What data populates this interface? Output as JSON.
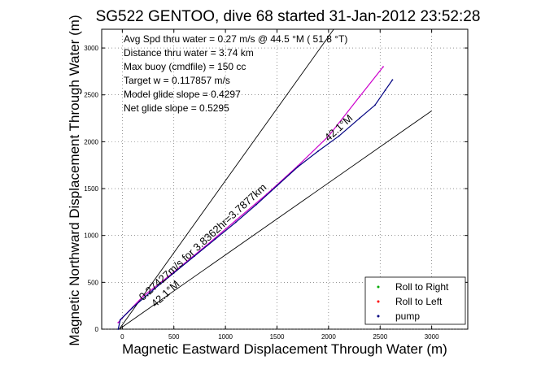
{
  "chart_data": {
    "type": "line",
    "title": "SG522 GENTOO, dive 68 started 31-Jan-2012 23:52:28",
    "xlabel": "Magnetic Eastward Displacement Through Water (m)",
    "ylabel": "Magnetic Northward Displacement Through Water (m)",
    "xlim": [
      -200,
      3350
    ],
    "ylim": [
      0,
      3200
    ],
    "xticks": [
      0,
      500,
      1000,
      1500,
      2000,
      2500,
      3000
    ],
    "yticks": [
      0,
      500,
      1000,
      1500,
      2000,
      2500,
      3000
    ],
    "grid": true,
    "legend_position": "bottom-right",
    "legend": [
      {
        "label": "Roll to Right",
        "color": "#00aa00"
      },
      {
        "label": "Roll to Left",
        "color": "#ff0000"
      },
      {
        "label": "pump",
        "color": "#000080"
      }
    ],
    "info_text": [
      "Avg Spd thru water = 0.27 m/s @  44.5   °M ( 51.8 °T)",
      "Distance thru water = 3.74 km",
      "Max buoy (cmdfile) = 150 cc",
      "Target w = 0.117857 m/s",
      "Model glide slope = 0.4297",
      "Net glide slope = 0.5295"
    ],
    "annotations": [
      {
        "text": "0.27427m/s for 3.8362hr=3.7877km",
        "x": 200,
        "y": 300
      },
      {
        "text": "42.1°M",
        "x": 2000,
        "y": 2000
      },
      {
        "text": "42.1°M",
        "x": 320,
        "y": 230
      }
    ],
    "reference_lines": [
      {
        "name": "upper bound",
        "x": [
          -30,
          2050
        ],
        "y": [
          0,
          3200
        ]
      },
      {
        "name": "lower bound",
        "x": [
          -30,
          3000
        ],
        "y": [
          0,
          2330
        ]
      }
    ],
    "series": [
      {
        "color": "#cc00cc",
        "x": [
          -40,
          0,
          200,
          500,
          800,
          1100,
          1400,
          1700,
          2000,
          2300,
          2530
        ],
        "y": [
          70,
          120,
          350,
          610,
          880,
          1160,
          1440,
          1740,
          2060,
          2480,
          2800
        ]
      },
      {
        "color": "#000080",
        "x": [
          -40,
          -20,
          100,
          300,
          500,
          700,
          900,
          1100,
          1300,
          1500,
          1700,
          1900,
          2100,
          2300,
          2450,
          2550,
          2620
        ],
        "y": [
          0,
          100,
          230,
          420,
          600,
          780,
          960,
          1140,
          1330,
          1530,
          1730,
          1900,
          2060,
          2250,
          2390,
          2550,
          2660
        ]
      }
    ]
  }
}
